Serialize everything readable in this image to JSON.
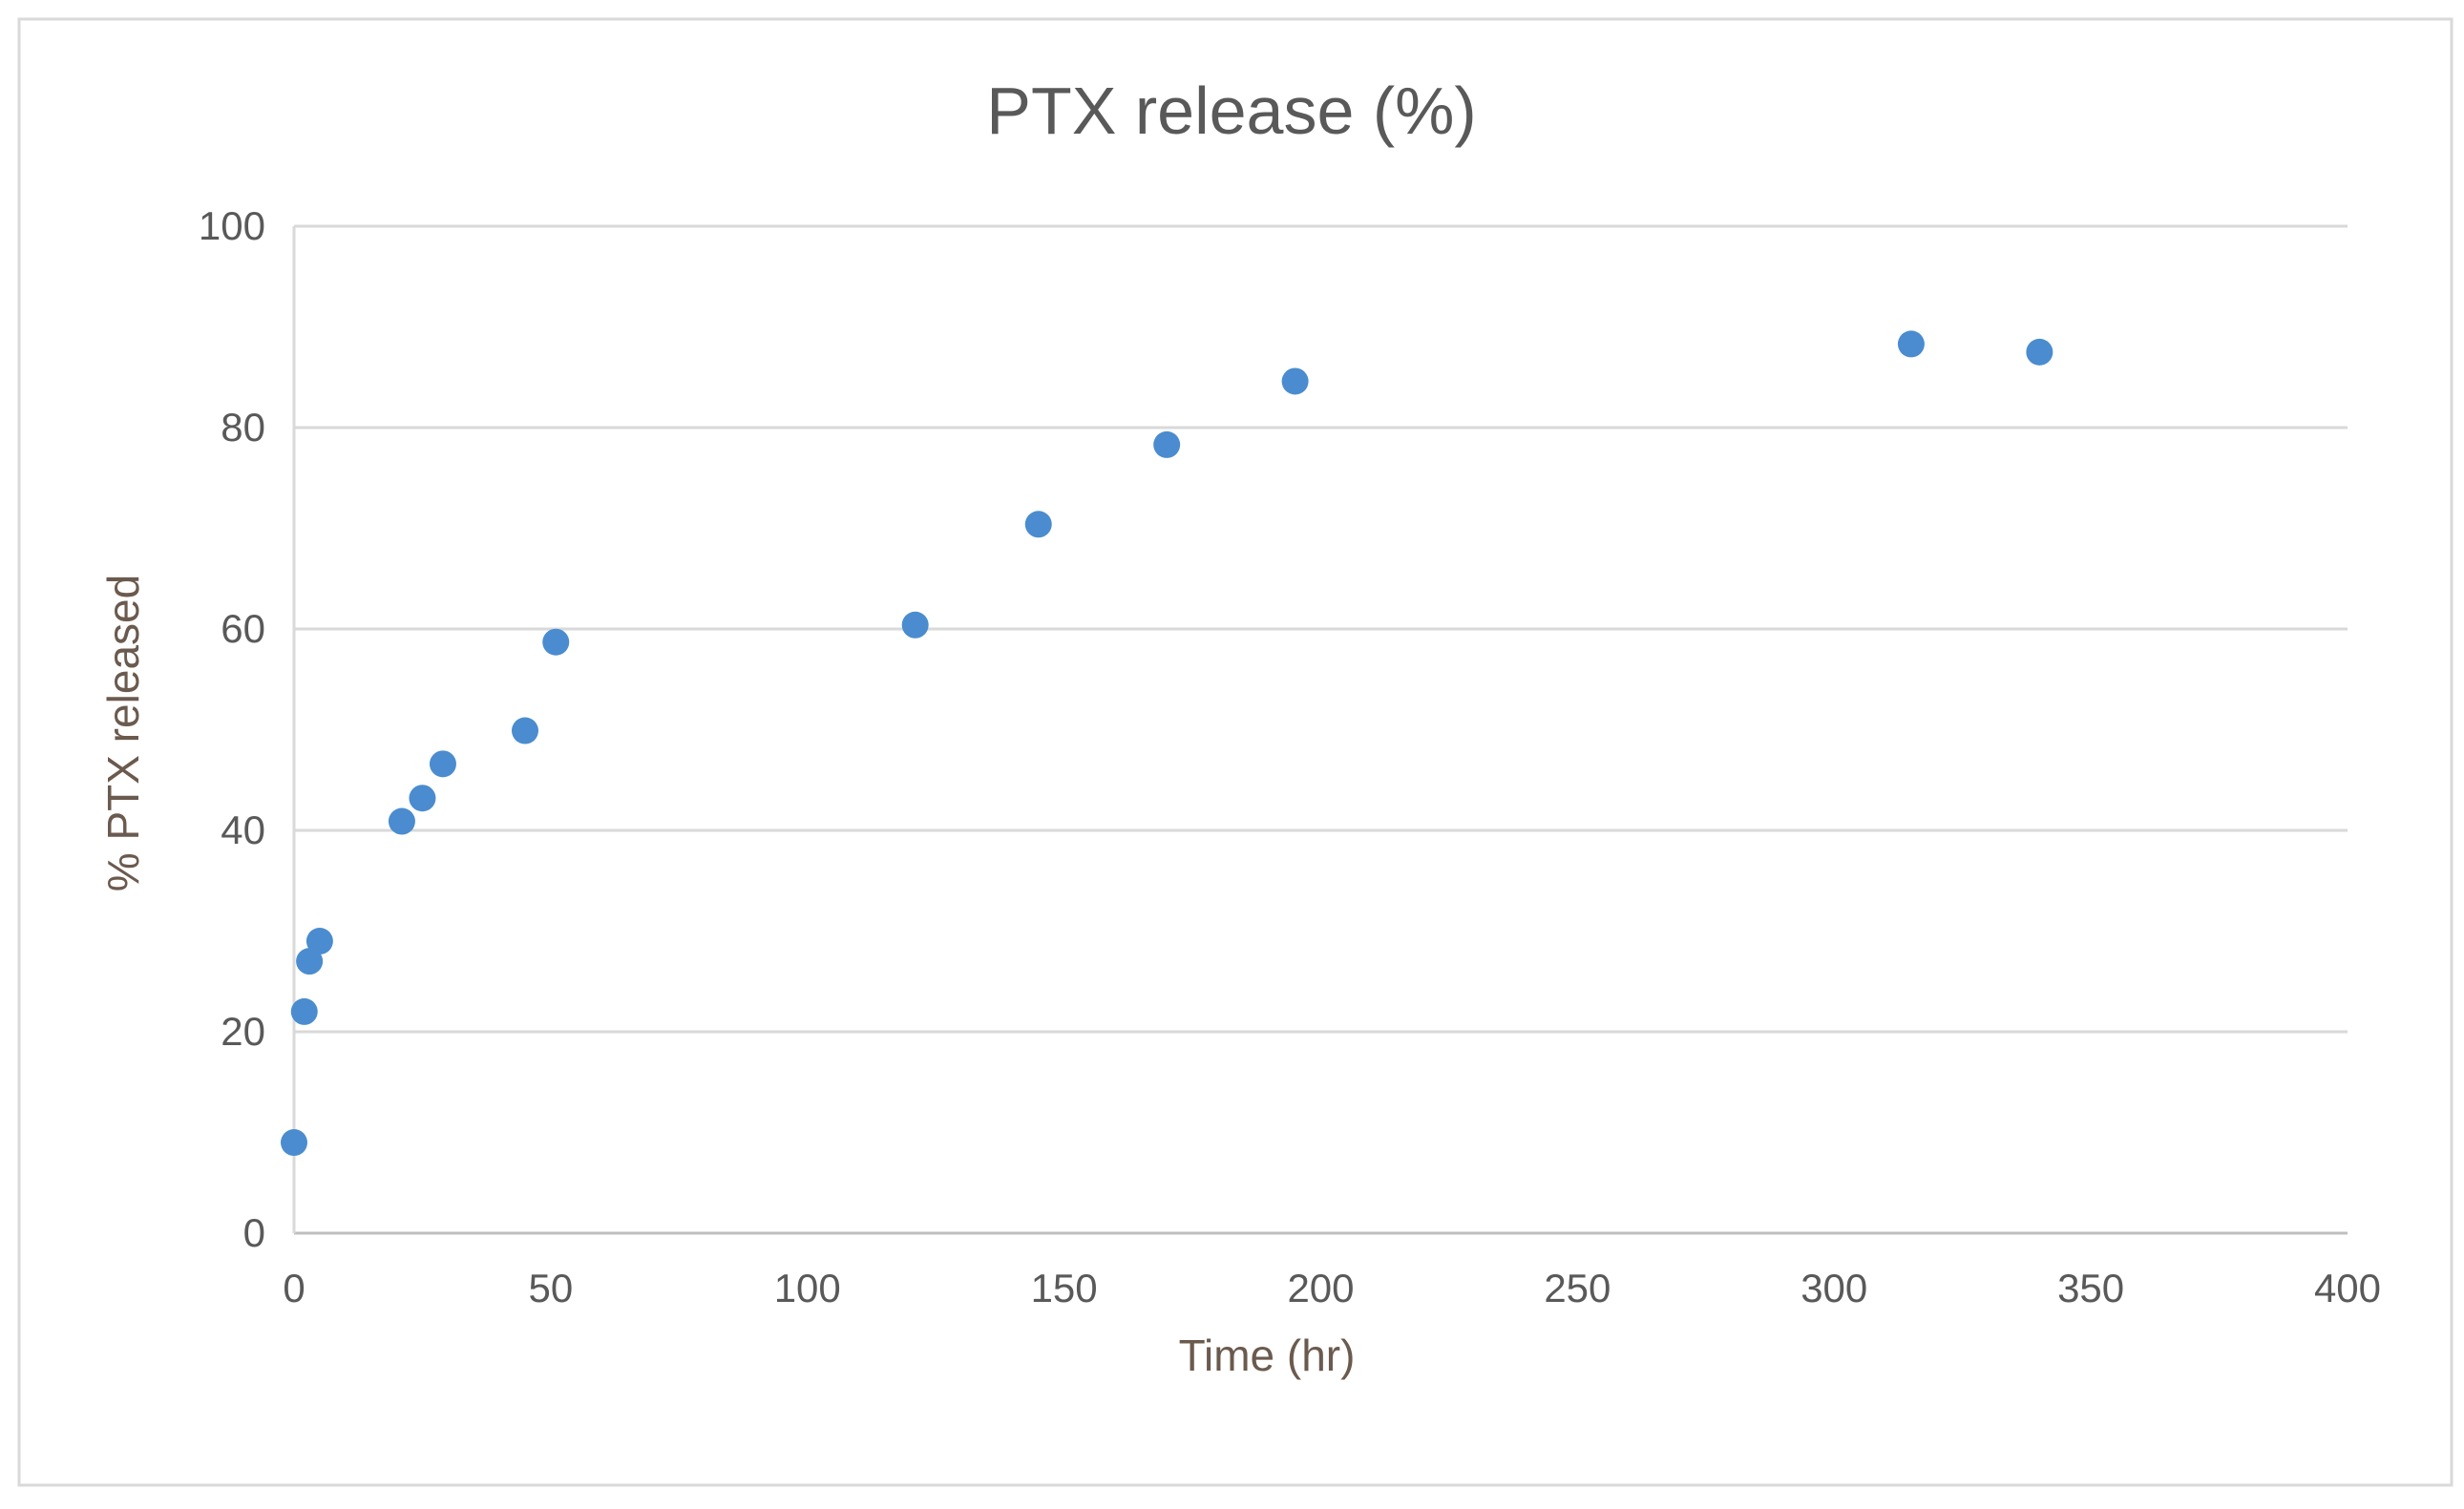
{
  "chart_data": {
    "type": "scatter",
    "title": "PTX release (%)",
    "xlabel": "Time (hr)",
    "ylabel": "% PTX released",
    "xlim": [
      0,
      400
    ],
    "ylim": [
      0,
      100
    ],
    "xticks": [
      "0",
      "50",
      "100",
      "150",
      "200",
      "250",
      "300",
      "350",
      "400"
    ],
    "yticks": [
      "0",
      "20",
      "40",
      "60",
      "80",
      "100"
    ],
    "grid": "horizontal",
    "legend": "none",
    "marker_color": "#4a8ccf",
    "series": [
      {
        "x": [
          0,
          2,
          3,
          5,
          21,
          25,
          29,
          45,
          51,
          121,
          145,
          170,
          195,
          315,
          340
        ],
        "y": [
          9.0,
          22.0,
          27.0,
          29.0,
          40.9,
          43.2,
          46.6,
          49.9,
          58.7,
          60.4,
          70.4,
          78.3,
          84.6,
          88.3,
          87.5
        ]
      }
    ]
  }
}
